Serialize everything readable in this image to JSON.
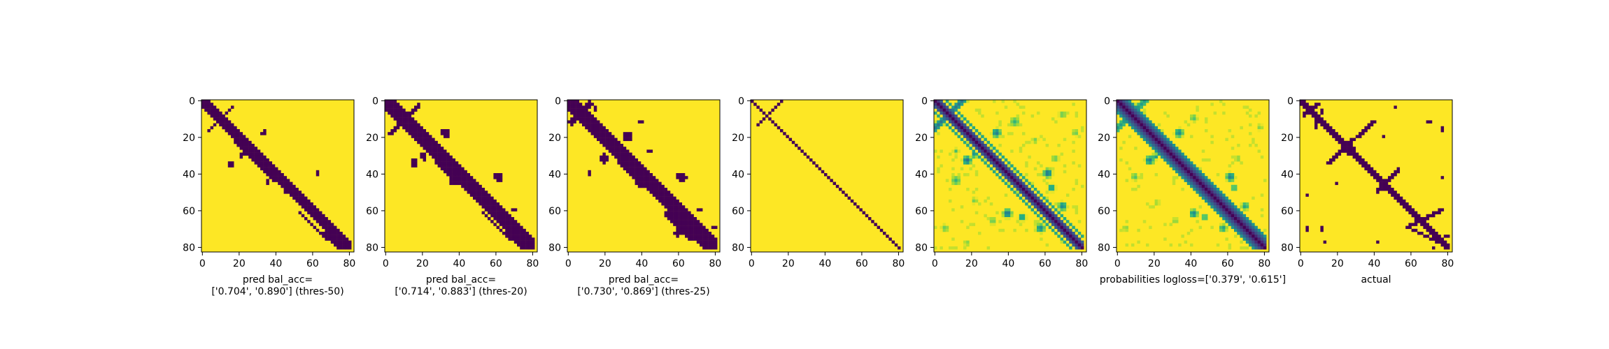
{
  "figure": {
    "background": "#ffffff"
  },
  "chart_data": [
    {
      "type": "heatmap",
      "title": "",
      "xlabel": "pred bal_acc=\n['0.704', '0.890'] (thres-50)",
      "ylabel": "",
      "xlim": [
        0,
        83
      ],
      "ylim": [
        83,
        0
      ],
      "xticks": [
        0,
        20,
        40,
        60,
        80
      ],
      "yticks": [
        0,
        20,
        40,
        60,
        80
      ],
      "grid": false,
      "colormap": "viridis",
      "binary": true,
      "background_value": 1,
      "foreground_value": 0,
      "segments": [
        [
          [
            0,
            0
          ],
          [
            83,
            83
          ],
          3.2
        ],
        [
          [
            4,
            17
          ],
          [
            17,
            4
          ],
          0.9
        ],
        [
          [
            28,
            33
          ],
          [
            40,
            45
          ],
          0.9
        ],
        [
          [
            32,
            37
          ],
          [
            18,
            23
          ],
          0.9
        ],
        [
          [
            66,
            72
          ],
          [
            76,
            82
          ],
          0.9
        ],
        [
          [
            54,
            62
          ],
          [
            68,
            76
          ],
          0.9
        ]
      ],
      "blobs": [
        [
          [
            29,
            29
          ],
          3
        ],
        [
          [
            47,
            48
          ],
          3
        ],
        [
          [
            34,
            18
          ],
          1.6
        ],
        [
          [
            22,
            30
          ],
          1.4
        ],
        [
          [
            16,
            35
          ],
          1.4
        ],
        [
          [
            63,
            40
          ],
          1.3
        ],
        [
          [
            36,
            45
          ],
          1.2
        ]
      ]
    },
    {
      "type": "heatmap",
      "title": "",
      "xlabel": "pred bal_acc=\n['0.714', '0.883'] (thres-20)",
      "ylabel": "",
      "xlim": [
        0,
        83
      ],
      "ylim": [
        83,
        0
      ],
      "xticks": [
        0,
        20,
        40,
        60,
        80
      ],
      "yticks": [
        0,
        20,
        40,
        60,
        80
      ],
      "grid": false,
      "colormap": "viridis",
      "binary": true,
      "background_value": 1,
      "foreground_value": 0,
      "segments": [
        [
          [
            0,
            0
          ],
          [
            83,
            83
          ],
          3.8
        ],
        [
          [
            3,
            18
          ],
          [
            18,
            3
          ],
          1.1
        ],
        [
          [
            28,
            33
          ],
          [
            40,
            45
          ],
          1.1
        ],
        [
          [
            54,
            62
          ],
          [
            68,
            76
          ],
          1.1
        ],
        [
          [
            66,
            72
          ],
          [
            76,
            82
          ],
          1.1
        ]
      ],
      "blobs": [
        [
          [
            29,
            29
          ],
          4
        ],
        [
          [
            48,
            49
          ],
          3.5
        ],
        [
          [
            16,
            35
          ],
          2.4
        ],
        [
          [
            33,
            18
          ],
          2.5
        ],
        [
          [
            21,
            31
          ],
          2
        ],
        [
          [
            62,
            42
          ],
          2.6
        ],
        [
          [
            37,
            45
          ],
          2
        ],
        [
          [
            18,
            14
          ],
          1.5
        ],
        [
          [
            70,
            60
          ],
          1.3
        ]
      ]
    },
    {
      "type": "heatmap",
      "title": "",
      "xlabel": "pred bal_acc=\n['0.730', '0.869'] (thres-25)",
      "ylabel": "",
      "xlim": [
        0,
        83
      ],
      "ylim": [
        83,
        0
      ],
      "xticks": [
        0,
        20,
        40,
        60,
        80
      ],
      "yticks": [
        0,
        20,
        40,
        60,
        80
      ],
      "grid": false,
      "colormap": "viridis",
      "binary": true,
      "background_value": 1,
      "foreground_value": 0,
      "segments": [
        [
          [
            0,
            0
          ],
          [
            83,
            83
          ],
          4.2
        ],
        [
          [
            2,
            12
          ],
          [
            12,
            2
          ],
          1.8
        ],
        [
          [
            28,
            33
          ],
          [
            40,
            45
          ],
          1.3
        ],
        [
          [
            54,
            62
          ],
          [
            68,
            76
          ],
          1.3
        ],
        [
          [
            66,
            72
          ],
          [
            76,
            82
          ],
          1.3
        ]
      ],
      "blobs": [
        [
          [
            29,
            29
          ],
          4.5
        ],
        [
          [
            49,
            50
          ],
          3.8
        ],
        [
          [
            20,
            32
          ],
          2.6
        ],
        [
          [
            33,
            20
          ],
          2.8
        ],
        [
          [
            62,
            42
          ],
          2.8
        ],
        [
          [
            40,
            45
          ],
          2.5
        ],
        [
          [
            60,
            73
          ],
          2
        ],
        [
          [
            72,
            60
          ],
          1.6
        ],
        [
          [
            40,
            12
          ],
          1.5
        ],
        [
          [
            12,
            40
          ],
          1.5
        ],
        [
          [
            45,
            28
          ],
          1.6
        ],
        [
          [
            15,
            5
          ],
          1.5
        ],
        [
          [
            80,
            70
          ],
          1.2
        ]
      ]
    },
    {
      "type": "heatmap",
      "title": "",
      "xlabel": "",
      "ylabel": "",
      "xlim": [
        0,
        83
      ],
      "ylim": [
        83,
        0
      ],
      "xticks": [
        0,
        20,
        40,
        60,
        80
      ],
      "yticks": [
        0,
        20,
        40,
        60,
        80
      ],
      "grid": false,
      "colormap": "viridis",
      "binary": true,
      "background_value": 1,
      "foreground_value": 0,
      "segments": [
        [
          [
            0,
            0
          ],
          [
            83,
            83
          ],
          0.35
        ],
        [
          [
            2,
            15
          ],
          [
            17,
            1
          ],
          0.35
        ]
      ],
      "blobs": []
    },
    {
      "type": "heatmap",
      "title": "",
      "xlabel": "",
      "ylabel": "",
      "xlim": [
        0,
        83
      ],
      "ylim": [
        83,
        0
      ],
      "xticks": [
        0,
        20,
        40,
        60,
        80
      ],
      "yticks": [
        0,
        20,
        40,
        60,
        80
      ],
      "grid": false,
      "colormap": "viridis",
      "binary": false,
      "background_value": 1,
      "segments": [
        [
          [
            0,
            0
          ],
          [
            83,
            83
          ],
          2.6,
          0.0
        ],
        [
          [
            0,
            3
          ],
          [
            80,
            83
          ],
          0.6,
          0.25
        ],
        [
          [
            3,
            0
          ],
          [
            83,
            80
          ],
          0.6,
          0.25
        ],
        [
          [
            0,
            6
          ],
          [
            77,
            83
          ],
          0.7,
          0.55
        ],
        [
          [
            6,
            0
          ],
          [
            83,
            77
          ],
          0.7,
          0.55
        ],
        [
          [
            0,
            16
          ],
          [
            16,
            0
          ],
          1.5,
          0.4
        ]
      ],
      "blobs": [
        [
          [
            29,
            29
          ],
          3.2,
          0.05
        ],
        [
          [
            47,
            48
          ],
          3,
          0.1
        ],
        [
          [
            18,
            33
          ],
          3,
          0.35
        ],
        [
          [
            34,
            18
          ],
          3,
          0.4
        ],
        [
          [
            22,
            30
          ],
          2,
          0.45
        ],
        [
          [
            62,
            40
          ],
          3,
          0.35
        ],
        [
          [
            40,
            62
          ],
          3,
          0.35
        ],
        [
          [
            70,
            58
          ],
          3,
          0.45
        ],
        [
          [
            58,
            70
          ],
          3,
          0.45
        ],
        [
          [
            48,
            64
          ],
          2.6,
          0.5
        ],
        [
          [
            64,
            48
          ],
          2.6,
          0.5
        ],
        [
          [
            12,
            44
          ],
          3,
          0.65
        ],
        [
          [
            44,
            12
          ],
          3,
          0.65
        ],
        [
          [
            6,
            70
          ],
          2.4,
          0.75
        ],
        [
          [
            70,
            8
          ],
          2.4,
          0.75
        ],
        [
          [
            77,
            18
          ],
          2.2,
          0.75
        ],
        [
          [
            18,
            78
          ],
          2,
          0.8
        ],
        [
          [
            32,
            66
          ],
          2.4,
          0.75
        ],
        [
          [
            66,
            32
          ],
          2.4,
          0.75
        ],
        [
          [
            12,
            28
          ],
          1.8,
          0.7
        ],
        [
          [
            55,
            22
          ],
          2,
          0.78
        ],
        [
          [
            22,
            55
          ],
          2,
          0.78
        ]
      ]
    },
    {
      "type": "heatmap",
      "title": "",
      "xlabel": "probabilities logloss=['0.379', '0.615']",
      "ylabel": "",
      "xlim": [
        0,
        83
      ],
      "ylim": [
        83,
        0
      ],
      "xticks": [
        0,
        20,
        40,
        60,
        80
      ],
      "yticks": [
        0,
        20,
        40,
        60,
        80
      ],
      "grid": false,
      "colormap": "viridis",
      "binary": false,
      "background_value": 1,
      "segments": [
        [
          [
            0,
            0
          ],
          [
            83,
            83
          ],
          3.4,
          0.0
        ],
        [
          [
            0,
            0
          ],
          [
            83,
            83
          ],
          5,
          0.3
        ],
        [
          [
            0,
            16
          ],
          [
            16,
            0
          ],
          1.4,
          0.55
        ]
      ],
      "blobs": [
        [
          [
            29,
            29
          ],
          3.5,
          0.05
        ],
        [
          [
            48,
            49
          ],
          3,
          0.1
        ],
        [
          [
            18,
            33
          ],
          3,
          0.4
        ],
        [
          [
            34,
            18
          ],
          3,
          0.45
        ],
        [
          [
            21,
            31
          ],
          2,
          0.5
        ],
        [
          [
            62,
            42
          ],
          3,
          0.4
        ],
        [
          [
            42,
            62
          ],
          2.8,
          0.45
        ],
        [
          [
            58,
            70
          ],
          2.6,
          0.55
        ],
        [
          [
            70,
            58
          ],
          2.6,
          0.55
        ],
        [
          [
            10,
            42
          ],
          2.4,
          0.7
        ],
        [
          [
            42,
            10
          ],
          2.4,
          0.7
        ],
        [
          [
            5,
            70
          ],
          2,
          0.8
        ],
        [
          [
            78,
            15
          ],
          2,
          0.8
        ],
        [
          [
            32,
            66
          ],
          2,
          0.8
        ],
        [
          [
            66,
            32
          ],
          2,
          0.8
        ],
        [
          [
            48,
            64
          ],
          2.2,
          0.6
        ],
        [
          [
            64,
            48
          ],
          2.2,
          0.6
        ],
        [
          [
            22,
            56
          ],
          1.8,
          0.82
        ]
      ]
    },
    {
      "type": "heatmap",
      "title": "",
      "xlabel": "actual",
      "ylabel": "",
      "xlim": [
        0,
        83
      ],
      "ylim": [
        83,
        0
      ],
      "xticks": [
        0,
        20,
        40,
        60,
        80
      ],
      "yticks": [
        0,
        20,
        40,
        60,
        80
      ],
      "grid": false,
      "colormap": "viridis",
      "binary": true,
      "background_value": 1,
      "foreground_value": 0,
      "segments": [
        [
          [
            0,
            0
          ],
          [
            83,
            83
          ],
          1.6
        ],
        [
          [
            16,
            34
          ],
          [
            40,
            12
          ],
          1.1
        ],
        [
          [
            42,
            50
          ],
          [
            54,
            38
          ],
          1.1
        ],
        [
          [
            58,
            70
          ],
          [
            78,
            60
          ],
          1.1
        ],
        [
          [
            60,
            70
          ],
          [
            76,
            78
          ],
          1.0
        ],
        [
          [
            2,
            8
          ],
          [
            10,
            2
          ],
          0.9
        ],
        [
          [
            8,
            16
          ],
          [
            12,
            6
          ],
          0.9
        ]
      ],
      "blobs": [
        [
          [
            27,
            27
          ],
          3
        ],
        [
          [
            47,
            48
          ],
          2.2
        ],
        [
          [
            68,
            68
          ],
          2
        ],
        [
          [
            12,
            70
          ],
          1.4
        ],
        [
          [
            70,
            12
          ],
          1.2
        ],
        [
          [
            4,
            70
          ],
          1.2
        ],
        [
          [
            4,
            52
          ],
          1
        ],
        [
          [
            52,
            4
          ],
          1
        ],
        [
          [
            20,
            46
          ],
          0.9
        ],
        [
          [
            46,
            20
          ],
          0.9
        ],
        [
          [
            78,
            42
          ],
          1
        ],
        [
          [
            42,
            78
          ],
          1
        ],
        [
          [
            72,
            80
          ],
          1.1
        ],
        [
          [
            80,
            74
          ],
          1.1
        ],
        [
          [
            14,
            78
          ],
          1
        ],
        [
          [
            78,
            16
          ],
          1
        ]
      ]
    }
  ]
}
